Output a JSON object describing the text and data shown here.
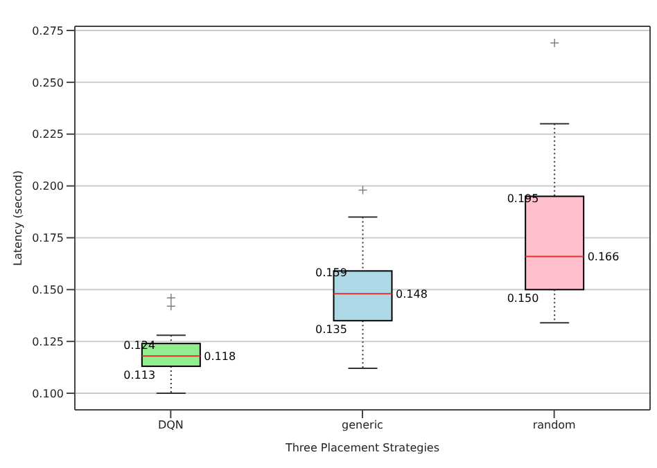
{
  "chart_data": {
    "type": "box",
    "xlabel": "Three Placement Strategies",
    "ylabel": "Latency (second)",
    "categories": [
      "DQN",
      "generic",
      "random"
    ],
    "colors": [
      "#90ee90",
      "#add8e6",
      "#ffc0cb"
    ],
    "boxes": [
      {
        "low": 0.1,
        "q1": 0.113,
        "median": 0.118,
        "q3": 0.124,
        "high": 0.128,
        "outliers": [
          0.142,
          0.146
        ]
      },
      {
        "low": 0.112,
        "q1": 0.135,
        "median": 0.148,
        "q3": 0.159,
        "high": 0.185,
        "outliers": [
          0.198
        ]
      },
      {
        "low": 0.134,
        "q1": 0.15,
        "median": 0.166,
        "q3": 0.195,
        "high": 0.23,
        "outliers": [
          0.269
        ]
      }
    ],
    "annotations": [
      {
        "text": "0.124",
        "x": "DQN",
        "y": 0.124
      },
      {
        "text": "0.113",
        "x": "DQN",
        "y": 0.113
      },
      {
        "text": "0.118",
        "x": "DQN",
        "y": 0.118
      },
      {
        "text": "0.159",
        "x": "generic",
        "y": 0.159
      },
      {
        "text": "0.135",
        "x": "generic",
        "y": 0.135
      },
      {
        "text": "0.148",
        "x": "generic",
        "y": 0.148
      },
      {
        "text": "0.195",
        "x": "random",
        "y": 0.195
      },
      {
        "text": "0.150",
        "x": "random",
        "y": 0.15
      },
      {
        "text": "0.166",
        "x": "random",
        "y": 0.166
      }
    ],
    "ylim": [
      0.092,
      0.277
    ],
    "yticks": [
      {
        "value": 0.1,
        "label": "0.100"
      },
      {
        "value": 0.125,
        "label": "0.125"
      },
      {
        "value": 0.15,
        "label": "0.150"
      },
      {
        "value": 0.175,
        "label": "0.175"
      },
      {
        "value": 0.2,
        "label": "0.200"
      },
      {
        "value": 0.225,
        "label": "0.225"
      },
      {
        "value": 0.25,
        "label": "0.250"
      },
      {
        "value": 0.275,
        "label": "0.275"
      }
    ],
    "grid": "y"
  }
}
